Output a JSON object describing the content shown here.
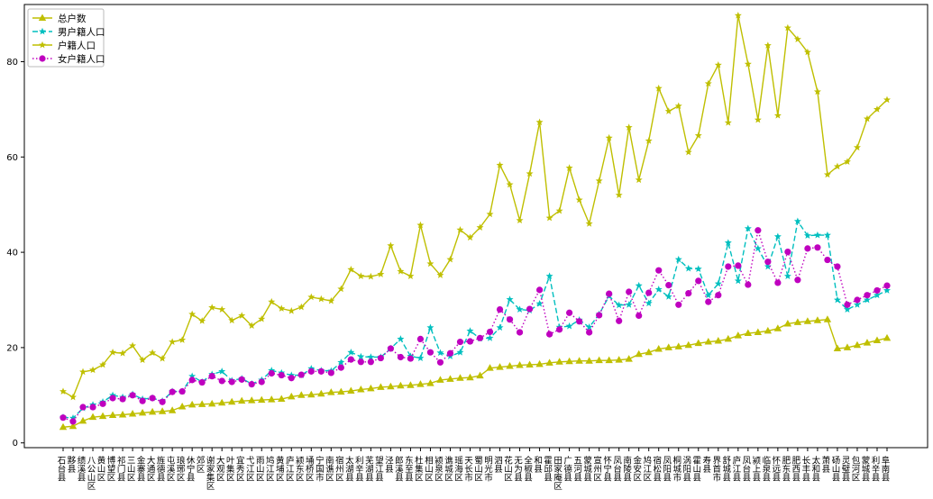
{
  "chart_data": {
    "type": "line",
    "title": "",
    "xlabel": "",
    "ylabel": "",
    "ylim": [
      -1,
      92
    ],
    "yticks": [
      0,
      20,
      40,
      60,
      80
    ],
    "grid": false,
    "legend_position": "top-left",
    "categories": [
      "石台县",
      "黟县",
      "绩溪县",
      "八公山区",
      "黄山区",
      "博望区",
      "祁门县",
      "三山区",
      "金寨县",
      "大通区",
      "旌德县",
      "屯溪区",
      "琅琊区",
      "休宁县",
      "郊区",
      "谢家集区",
      "大观区",
      "叶集区",
      "宜秀区",
      "弋江区",
      "雨山区",
      "鸠江区",
      "黄埔区",
      "庐江区",
      "颍东区",
      "埇桥区",
      "宁国市",
      "南谯区",
      "宿州区",
      "太湖县",
      "利辛县",
      "芜湖县",
      "望江县",
      "泾县",
      "郎溪县",
      "东至县",
      "杜集区",
      "相山区",
      "颍泉区",
      "谯城区",
      "瑶海区",
      "天长市",
      "蜀山区",
      "明光市",
      "泗县",
      "花山区",
      "无为县",
      "全椒县",
      "和县",
      "霍邱县",
      "田家庵区",
      "广德县",
      "五河县",
      "蒙城县",
      "宣州区",
      "怀宁县",
      "凤台县",
      "南陵县",
      "金安区",
      "鸠江区",
      "宿松县",
      "凤阳县",
      "桐城市",
      "涡阳县",
      "霍山县",
      "寿县",
      "界首市",
      "舒城县",
      "庐江县",
      "凤台县",
      "颍上县",
      "临泉县",
      "怀远县",
      "肥东县",
      "肥西县",
      "长丰县",
      "太和县",
      "萧县",
      "砀山县",
      "灵璧县",
      "包河区",
      "蒙城县",
      "利辛县",
      "阜南县"
    ],
    "series": [
      {
        "name": "总户数",
        "color": "#bfbf00",
        "style": "solid",
        "marker": "triangle",
        "values": [
          3.3,
          3.5,
          4.6,
          5.4,
          5.6,
          5.8,
          5.9,
          6.1,
          6.3,
          6.5,
          6.6,
          6.8,
          7.6,
          8.0,
          8.1,
          8.2,
          8.4,
          8.6,
          8.8,
          8.9,
          9.0,
          9.1,
          9.2,
          9.7,
          10.0,
          10.1,
          10.3,
          10.6,
          10.7,
          10.9,
          11.2,
          11.4,
          11.7,
          11.8,
          12.0,
          12.1,
          12.3,
          12.5,
          13.2,
          13.4,
          13.6,
          13.7,
          14.1,
          15.7,
          15.9,
          16.1,
          16.3,
          16.4,
          16.5,
          16.8,
          17.0,
          17.1,
          17.2,
          17.2,
          17.3,
          17.3,
          17.4,
          17.6,
          18.6,
          19.0,
          19.7,
          20.0,
          20.2,
          20.5,
          20.9,
          21.2,
          21.4,
          21.8,
          22.5,
          23.0,
          23.2,
          23.5,
          24.0,
          25.0,
          25.3,
          25.5,
          25.7,
          25.9,
          19.8,
          20.0,
          20.5,
          21.0,
          21.5,
          22.0
        ]
      },
      {
        "name": "男户籍人口",
        "color": "#00bfbf",
        "style": "dashed",
        "marker": "star",
        "values": [
          5.4,
          5.2,
          7.3,
          8.0,
          8.6,
          10.0,
          9.6,
          10.2,
          9.2,
          9.4,
          8.8,
          10.8,
          10.8,
          14.0,
          12.8,
          14.4,
          15.0,
          13.1,
          13.5,
          12.4,
          13.2,
          15.2,
          14.7,
          14.2,
          14.2,
          15.6,
          15.2,
          15.1,
          16.9,
          19.0,
          18.1,
          18.0,
          18.0,
          19.8,
          21.8,
          18.2,
          17.8,
          24.2,
          18.9,
          18.2,
          19.0,
          23.5,
          21.9,
          22.0,
          24.2,
          30.1,
          28.0,
          27.8,
          29.2,
          35.0,
          24.3,
          24.5,
          25.8,
          24.3,
          27.0,
          30.8,
          28.9,
          29.0,
          33.0,
          29.3,
          32.2,
          30.7,
          38.5,
          36.6,
          36.5,
          31.0,
          33.4,
          42.0,
          34.0,
          45.0,
          40.8,
          37.0,
          43.3,
          35.0,
          46.5,
          43.5,
          43.6,
          43.6,
          30.0,
          28.0,
          29.0,
          30.0,
          31.0,
          32.0
        ]
      },
      {
        "name": "户籍人口",
        "color": "#bfbf00",
        "style": "solid",
        "marker": "star",
        "values": [
          10.8,
          9.6,
          14.9,
          15.3,
          16.4,
          19.0,
          18.8,
          20.4,
          17.4,
          18.9,
          17.7,
          21.2,
          21.6,
          27.0,
          25.6,
          28.4,
          28.0,
          25.7,
          26.7,
          24.6,
          26.0,
          29.6,
          28.2,
          27.7,
          28.5,
          30.6,
          30.2,
          29.8,
          32.3,
          36.4,
          35.0,
          34.9,
          35.4,
          41.4,
          36.0,
          35.0,
          45.7,
          37.6,
          35.2,
          38.5,
          44.7,
          43.1,
          45.2,
          48.0,
          58.3,
          54.2,
          46.7,
          56.5,
          67.3,
          47.2,
          48.7,
          57.7,
          51.0,
          46.0,
          55.0,
          64.0,
          52.0,
          66.2,
          55.2,
          63.4,
          74.4,
          69.6,
          70.7,
          61.0,
          64.5,
          75.4,
          79.3,
          67.2,
          89.7,
          79.5,
          67.8,
          83.4,
          68.7,
          87.1,
          84.7,
          82.0,
          73.7,
          56.3,
          58.0,
          59.0,
          62.0,
          68.0,
          70.0,
          72.0
        ]
      },
      {
        "name": "女户籍人口",
        "color": "#bf00bf",
        "style": "dotted",
        "marker": "circle",
        "values": [
          5.3,
          4.5,
          7.5,
          7.5,
          8.2,
          9.4,
          9.2,
          10.0,
          8.8,
          9.4,
          8.6,
          10.7,
          10.8,
          13.2,
          12.7,
          14.0,
          13.0,
          12.8,
          13.3,
          12.3,
          12.8,
          14.6,
          14.2,
          13.6,
          14.3,
          15.0,
          15.0,
          14.7,
          15.8,
          17.5,
          17.0,
          17.0,
          17.8,
          19.8,
          18.0,
          17.7,
          21.8,
          19.0,
          16.9,
          18.8,
          21.2,
          21.3,
          22.0,
          23.3,
          28.0,
          25.9,
          23.2,
          28.1,
          32.1,
          22.8,
          23.8,
          27.3,
          25.5,
          23.2,
          26.8,
          31.3,
          25.6,
          31.7,
          26.7,
          31.5,
          36.2,
          33.1,
          29.0,
          31.4,
          34.0,
          29.6,
          31.0,
          37.0,
          37.2,
          33.2,
          44.6,
          38.0,
          33.6,
          40.1,
          34.2,
          40.8,
          41.0,
          38.4,
          37.0,
          29.0,
          30.0,
          31.0,
          32.0,
          33.0
        ]
      }
    ]
  }
}
